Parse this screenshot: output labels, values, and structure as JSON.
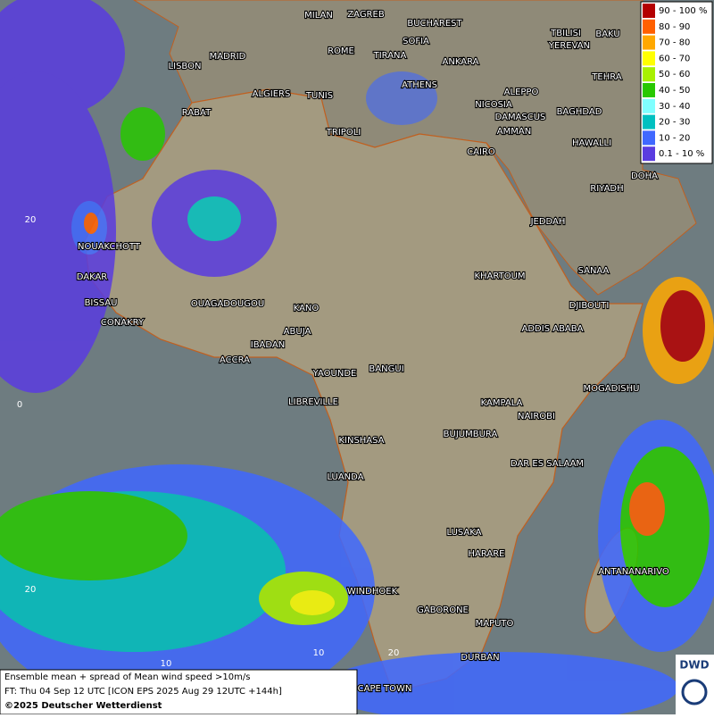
{
  "legend": {
    "entries": [
      {
        "label": "90 - 100 %",
        "color": "#b40000"
      },
      {
        "label": "80 - 90",
        "color": "#ff6000"
      },
      {
        "label": "70 - 80",
        "color": "#ffa800"
      },
      {
        "label": "60 - 70",
        "color": "#ffff00"
      },
      {
        "label": "50 - 60",
        "color": "#a8f000"
      },
      {
        "label": "40 - 50",
        "color": "#28c800"
      },
      {
        "label": "30 - 40",
        "color": "#80ffff"
      },
      {
        "label": "20 - 30",
        "color": "#00c0c0"
      },
      {
        "label": "10 - 20",
        "color": "#4068ff"
      },
      {
        "label": "0.1 - 10 %",
        "color": "#5a3ce0"
      }
    ]
  },
  "cities": [
    "MILAN",
    "ZAGREB",
    "BUCHAREST",
    "SOFIA",
    "ROME",
    "TIRANA",
    "ANKARA",
    "TBILISI",
    "BAKU",
    "YEREVAN",
    "LISBON",
    "MADRID",
    "ATHENS",
    "TEHRA",
    "ALGIERS",
    "TUNIS",
    "ALEPPO",
    "RABAT",
    "NICOSIA",
    "BAGHDAD",
    "TRIPOLI",
    "DAMASCUS",
    "AMMAN",
    "HAWALLI",
    "CAIRO",
    "DOHA",
    "RIYADH",
    "JEDDAH",
    "NOUAKCHOTT",
    "KHARTOUM",
    "SANAA",
    "DAKAR",
    "BISSAU",
    "DJIBOUTI",
    "OUAGADOUGOU",
    "KANO",
    "CONAKRY",
    "ABUJA",
    "ADDIS ABABA",
    "IBADAN",
    "ACCRA",
    "YAOUNDE",
    "BANGUI",
    "MOGADISHU",
    "LIBREVILLE",
    "KAMPALA",
    "NAIROBI",
    "KINSHASA",
    "BUJUMBURA",
    "DAR ES SALAAM",
    "LUANDA",
    "LUSAKA",
    "HARARE",
    "ANTANANARIVO",
    "WINDHOEK",
    "GABORONE",
    "MAPUTO",
    "DURBAN",
    "CAPE TOWN"
  ],
  "grid_labels": [
    "20",
    "0",
    "20",
    "10",
    "10",
    "20"
  ],
  "footer": {
    "lines": [
      "Ensemble mean + spread of Mean wind speed >10m/s",
      "FT: Thu 04 Sep 12 UTC [ICON EPS 2025 Aug 29 12UTC +144h]",
      "©2025 Deutscher Wetterdienst"
    ]
  },
  "logo": {
    "text": "DWD"
  }
}
